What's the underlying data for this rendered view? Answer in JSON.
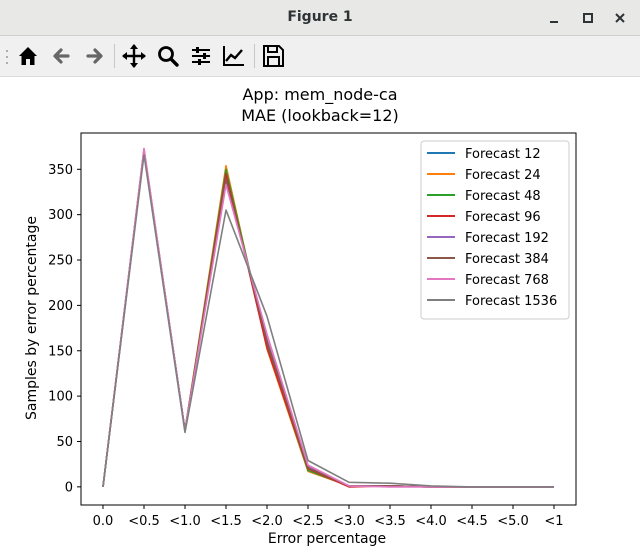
{
  "window": {
    "title": "Figure 1"
  },
  "toolbar": {
    "buttons": [
      {
        "name": "home-button",
        "icon": "home-icon"
      },
      {
        "name": "back-button",
        "icon": "arrow-left-icon"
      },
      {
        "name": "forward-button",
        "icon": "arrow-right-icon"
      },
      {
        "name": "pan-button",
        "icon": "move-icon"
      },
      {
        "name": "zoom-button",
        "icon": "magnifier-icon"
      },
      {
        "name": "subplots-button",
        "icon": "sliders-icon"
      },
      {
        "name": "edit-axes-button",
        "icon": "line-chart-icon"
      },
      {
        "name": "save-button",
        "icon": "floppy-disk-icon"
      }
    ]
  },
  "chart_data": {
    "type": "line",
    "title": "App: mem_node-ca",
    "subtitle": "MAE (lookback=12)",
    "xlabel": "Error percentage",
    "ylabel": "Samples by error percentage",
    "categories": [
      "0.0",
      "<0.5",
      "<1.0",
      "<1.5",
      "<2.0",
      "<2.5",
      "<3.0",
      "<3.5",
      "<4.0",
      "<4.5",
      "<5.0",
      "<1"
    ],
    "ylim": [
      -20,
      390
    ],
    "yticks": [
      0,
      50,
      100,
      150,
      200,
      250,
      300,
      350
    ],
    "legend_position": "upper-right",
    "series": [
      {
        "name": "Forecast 12",
        "color": "#1f77b4",
        "values": [
          0,
          370,
          62,
          348,
          158,
          18,
          1,
          1,
          0,
          0,
          0,
          0
        ]
      },
      {
        "name": "Forecast 24",
        "color": "#ff7f0e",
        "values": [
          0,
          370,
          62,
          354,
          152,
          17,
          1,
          1,
          0,
          0,
          0,
          0
        ]
      },
      {
        "name": "Forecast 48",
        "color": "#2ca02c",
        "values": [
          0,
          370,
          62,
          350,
          155,
          18,
          1,
          1,
          0,
          0,
          0,
          0
        ]
      },
      {
        "name": "Forecast 96",
        "color": "#d62728",
        "values": [
          0,
          372,
          62,
          345,
          153,
          20,
          0,
          1,
          0,
          0,
          0,
          0
        ]
      },
      {
        "name": "Forecast 192",
        "color": "#9467bd",
        "values": [
          0,
          371,
          62,
          338,
          162,
          22,
          1,
          1,
          0,
          0,
          0,
          0
        ]
      },
      {
        "name": "Forecast 384",
        "color": "#8c564b",
        "values": [
          0,
          371,
          62,
          340,
          160,
          21,
          1,
          1,
          0,
          0,
          0,
          0
        ]
      },
      {
        "name": "Forecast 768",
        "color": "#e377c2",
        "values": [
          0,
          373,
          62,
          333,
          168,
          24,
          1,
          0,
          0,
          0,
          0,
          0
        ]
      },
      {
        "name": "Forecast 1536",
        "color": "#7f7f7f",
        "values": [
          0,
          366,
          60,
          305,
          188,
          29,
          5,
          4,
          1,
          0,
          0,
          0
        ]
      }
    ]
  }
}
